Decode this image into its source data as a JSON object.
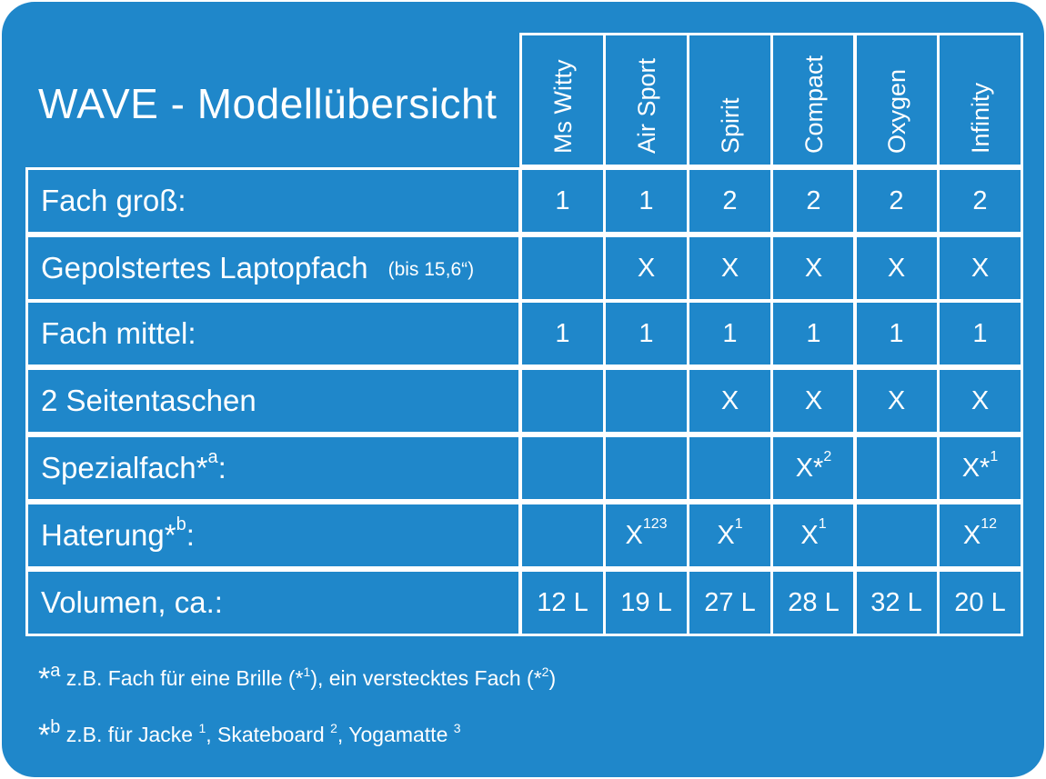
{
  "title": "WAVE - Modellübersicht",
  "models": [
    "Ms Witty",
    "Air Sport",
    "Spirit",
    "Compact",
    "Oxygen",
    "Infinity"
  ],
  "rows": [
    {
      "label": "Fach groß:",
      "label_note": "",
      "label_sup": "",
      "cells": [
        {
          "text": "1",
          "sup": ""
        },
        {
          "text": "1",
          "sup": ""
        },
        {
          "text": "2",
          "sup": ""
        },
        {
          "text": "2",
          "sup": ""
        },
        {
          "text": "2",
          "sup": ""
        },
        {
          "text": "2",
          "sup": ""
        }
      ]
    },
    {
      "label": "Gepolstertes Laptopfach",
      "label_note": "(bis 15,6“)",
      "label_sup": "",
      "cells": [
        {
          "text": "",
          "sup": ""
        },
        {
          "text": "X",
          "sup": ""
        },
        {
          "text": "X",
          "sup": ""
        },
        {
          "text": "X",
          "sup": ""
        },
        {
          "text": "X",
          "sup": ""
        },
        {
          "text": "X",
          "sup": ""
        }
      ]
    },
    {
      "label": "Fach mittel:",
      "label_note": "",
      "label_sup": "",
      "cells": [
        {
          "text": "1",
          "sup": ""
        },
        {
          "text": "1",
          "sup": ""
        },
        {
          "text": "1",
          "sup": ""
        },
        {
          "text": "1",
          "sup": ""
        },
        {
          "text": "1",
          "sup": ""
        },
        {
          "text": "1",
          "sup": ""
        }
      ]
    },
    {
      "label": "2 Seitentaschen",
      "label_note": "",
      "label_sup": "",
      "cells": [
        {
          "text": "",
          "sup": ""
        },
        {
          "text": "",
          "sup": ""
        },
        {
          "text": "X",
          "sup": ""
        },
        {
          "text": "X",
          "sup": ""
        },
        {
          "text": "X",
          "sup": ""
        },
        {
          "text": "X",
          "sup": ""
        }
      ]
    },
    {
      "label": "Spezialfach*",
      "label_note": "",
      "label_sup": "a",
      "label_suffix": ":",
      "cells": [
        {
          "text": "",
          "sup": ""
        },
        {
          "text": "",
          "sup": ""
        },
        {
          "text": "",
          "sup": ""
        },
        {
          "text": "X*",
          "sup": "2"
        },
        {
          "text": "",
          "sup": ""
        },
        {
          "text": "X*",
          "sup": "1"
        }
      ]
    },
    {
      "label": "Haterung*",
      "label_note": "",
      "label_sup": "b",
      "label_suffix": ":",
      "cells": [
        {
          "text": "",
          "sup": ""
        },
        {
          "text": "X",
          "sup": "123"
        },
        {
          "text": "X",
          "sup": "1"
        },
        {
          "text": "X",
          "sup": "1"
        },
        {
          "text": "",
          "sup": ""
        },
        {
          "text": "X",
          "sup": "12"
        }
      ]
    },
    {
      "label": "Volumen, ca.:",
      "label_note": "",
      "label_sup": "",
      "cells": [
        {
          "text": "12 L",
          "sup": ""
        },
        {
          "text": "19 L",
          "sup": ""
        },
        {
          "text": "27 L",
          "sup": ""
        },
        {
          "text": "28 L",
          "sup": ""
        },
        {
          "text": "32 L",
          "sup": ""
        },
        {
          "text": "20 L",
          "sup": ""
        }
      ]
    }
  ],
  "footnotes": {
    "a": {
      "mark": "*",
      "mark_sup": "a",
      "text1": "z.B. Fach für eine Brille (*",
      "sup1": "1",
      "text2": "), ein verstecktes Fach (*",
      "sup2": "2",
      "text3": ")"
    },
    "b": {
      "mark": "*",
      "mark_sup": "b",
      "text1": "z.B. für Jacke ",
      "sup1": "1",
      "text2": ", Skateboard ",
      "sup2": "2",
      "text3": ", Yogamatte ",
      "sup3": "3"
    }
  },
  "colors": {
    "background": "#1f87ca",
    "lines": "#ffffff",
    "text": "#ffffff"
  }
}
